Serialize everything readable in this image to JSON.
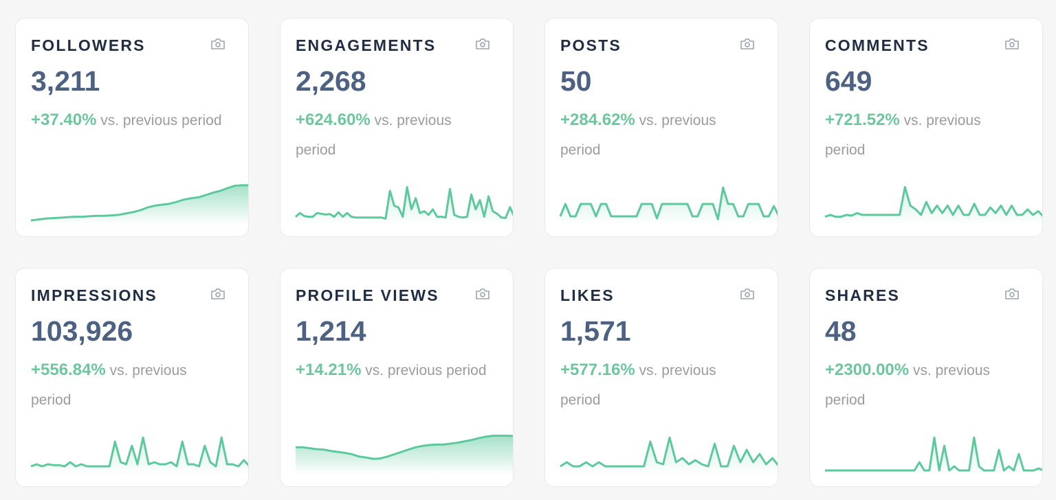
{
  "accent_color": "#5cc99d",
  "suffix": "vs. previous period",
  "icon": "camera-icon",
  "cards": [
    {
      "title": "FOLLOWERS",
      "value": "3,211",
      "change": "+37.40%",
      "ylim": [
        0,
        8
      ],
      "fill": "strong",
      "sparkline": [
        0,
        0.2,
        0.4,
        0.5,
        0.6,
        0.7,
        0.8,
        0.8,
        0.9,
        1,
        1,
        1.1,
        1.2,
        1.5,
        1.8,
        2.2,
        2.8,
        3.2,
        3.4,
        3.6,
        4,
        4.5,
        4.8,
        5,
        5.5,
        6,
        6.4,
        7,
        7.5,
        7.6,
        7.6
      ]
    },
    {
      "title": "ENGAGEMENTS",
      "value": "2,268",
      "change": "+624.60%",
      "ylim": [
        0,
        10
      ],
      "fill": "light",
      "sparkline": [
        1,
        2,
        1.2,
        1,
        1,
        2,
        1.8,
        1.6,
        1.7,
        1,
        2.2,
        1,
        2,
        1,
        0.8,
        0.8,
        0.8,
        0.8,
        0.8,
        0.8,
        0.8,
        0.5,
        8,
        4,
        3.5,
        1,
        9,
        3,
        6,
        2,
        2.5,
        1.5,
        3,
        1,
        1,
        0.8,
        8.5,
        1.5,
        1,
        0.8,
        1,
        7,
        3,
        5.5,
        1,
        6.5,
        2.5,
        1.8,
        0.8,
        0.7,
        3.6,
        1
      ]
    },
    {
      "title": "POSTS",
      "value": "50",
      "change": "+284.62%",
      "ylim": [
        0,
        9
      ],
      "fill": "light",
      "sparkline": [
        1,
        4,
        1,
        1,
        4,
        4,
        4,
        1,
        4,
        4,
        1,
        1,
        1,
        1,
        1,
        1,
        4,
        4,
        4,
        0.5,
        4,
        4,
        4,
        4,
        4,
        4,
        1,
        1,
        4,
        4,
        4,
        0.3,
        8,
        4,
        4,
        1,
        1,
        4,
        4,
        4,
        1,
        1,
        3.5,
        1
      ]
    },
    {
      "title": "COMMENTS",
      "value": "649",
      "change": "+721.52%",
      "ylim": [
        0,
        10
      ],
      "fill": "light",
      "sparkline": [
        1,
        1.5,
        1,
        1,
        1.5,
        1.3,
        2,
        1.5,
        1.5,
        1.5,
        1.5,
        1.5,
        1.5,
        1.5,
        1.5,
        9,
        4,
        3,
        1.5,
        5,
        2,
        4,
        2,
        4,
        1.5,
        4,
        1.5,
        1.5,
        4.5,
        1.5,
        1.5,
        3.5,
        2,
        4,
        1.5,
        4,
        1.5,
        1.5,
        3,
        1.5,
        2.5,
        1
      ]
    },
    {
      "title": "IMPRESSIONS",
      "value": "103,926",
      "change": "+556.84%",
      "ylim": [
        0,
        9
      ],
      "fill": "light",
      "sparkline": [
        1,
        1.5,
        1,
        1.5,
        1.3,
        1.3,
        1,
        2,
        1,
        1.5,
        1,
        1,
        1,
        1,
        1,
        7,
        2,
        1.5,
        6,
        1.5,
        8,
        1.5,
        2,
        1.5,
        1.5,
        2,
        1,
        7,
        1.5,
        1.5,
        1,
        6,
        2,
        1,
        8,
        1.5,
        1.5,
        1,
        2.5,
        1
      ]
    },
    {
      "title": "PROFILE VIEWS",
      "value": "1,214",
      "change": "+14.21%",
      "ylim": [
        0,
        8
      ],
      "fill": "strong",
      "sparkline": [
        5,
        5,
        4.8,
        4.6,
        4.5,
        4.2,
        4,
        3.8,
        3.5,
        3,
        2.8,
        2.5,
        2.6,
        3,
        3.5,
        4,
        4.5,
        5,
        5.3,
        5.5,
        5.6,
        5.6,
        5.8,
        6,
        6.3,
        6.6,
        7,
        7.3,
        7.5,
        7.5,
        7.5,
        7.4
      ]
    },
    {
      "title": "LIKES",
      "value": "1,571",
      "change": "+577.16%",
      "ylim": [
        0,
        9
      ],
      "fill": "light",
      "sparkline": [
        1,
        2,
        1,
        1,
        2,
        1,
        2,
        1,
        1,
        1,
        1,
        1,
        1,
        1,
        7,
        2,
        1.5,
        8,
        2,
        3,
        1.5,
        2.5,
        1.5,
        1,
        6.5,
        1,
        1,
        6,
        2,
        5,
        2,
        4,
        1.5,
        3,
        1
      ]
    },
    {
      "title": "SHARES",
      "value": "48",
      "change": "+2300.00%",
      "ylim": [
        0,
        9
      ],
      "fill": "light",
      "sparkline": [
        0,
        0,
        0,
        0,
        0,
        0,
        0,
        0,
        0,
        0,
        0,
        0,
        0,
        0,
        0,
        0,
        0,
        0,
        0,
        2,
        0,
        0,
        8,
        0,
        6,
        0,
        1,
        0,
        0,
        0,
        8,
        1,
        0,
        0,
        0,
        5,
        0,
        1,
        0,
        4,
        0,
        0,
        0,
        0.5,
        0
      ]
    }
  ]
}
